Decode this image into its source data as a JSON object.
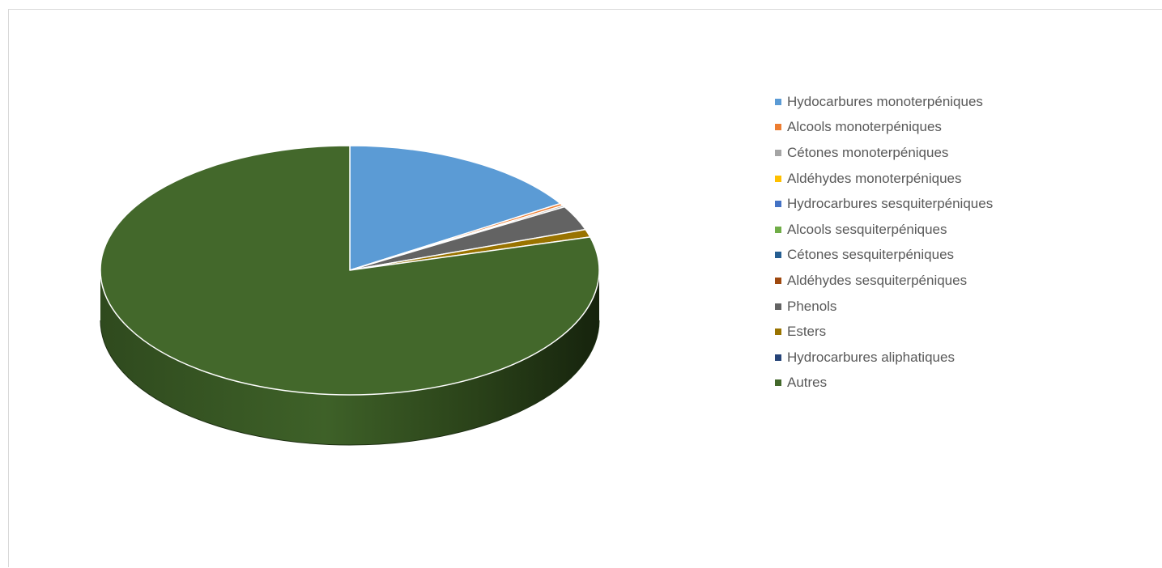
{
  "chart_data": {
    "type": "pie",
    "title": "",
    "legend_position": "right",
    "slices": [
      {
        "label": "Hydocarbures monoterpéniques",
        "value": 16.0,
        "color": "#5b9bd5"
      },
      {
        "label": "Alcools monoterpéniques",
        "value": 0.3,
        "color": "#ed7d31"
      },
      {
        "label": "Cétones monoterpéniques",
        "value": 0.2,
        "color": "#a5a5a5"
      },
      {
        "label": "Aldéhydes monoterpéniques",
        "value": 0.0,
        "color": "#ffc000"
      },
      {
        "label": "Hydrocarbures sesquiterpéniques",
        "value": 0.0,
        "color": "#4472c4"
      },
      {
        "label": "Alcools sesquiterpéniques",
        "value": 0.0,
        "color": "#70ad47"
      },
      {
        "label": "Cétones sesquiterpéniques",
        "value": 0.0,
        "color": "#255e91"
      },
      {
        "label": "Aldéhydes sesquiterpéniques",
        "value": 0.0,
        "color": "#9e480e"
      },
      {
        "label": "Phenols",
        "value": 3.2,
        "color": "#636363"
      },
      {
        "label": "Esters",
        "value": 1.0,
        "color": "#997300"
      },
      {
        "label": "Hydrocarbures aliphatiques",
        "value": 0.0,
        "color": "#264478"
      },
      {
        "label": "Autres",
        "value": 79.3,
        "color": "#43682b"
      }
    ]
  }
}
